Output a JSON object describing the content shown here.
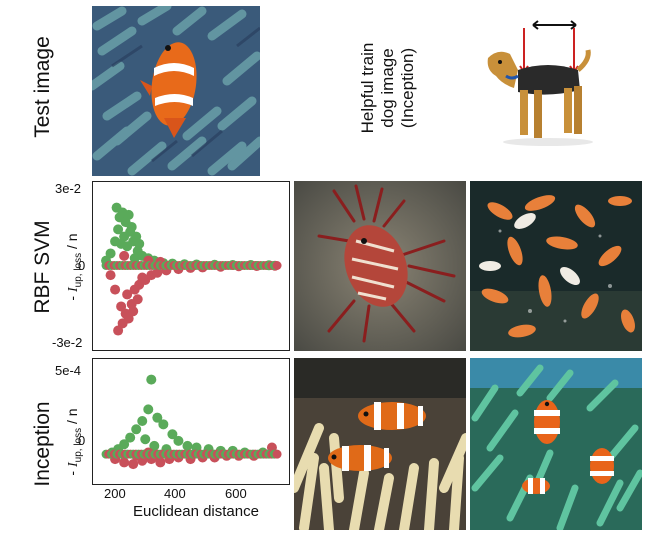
{
  "labels": {
    "test_image": "Test image",
    "helpful_line1": "Helpful train",
    "helpful_line2": "dog image",
    "helpful_line3": "(Inception)",
    "row_rbf": "RBF SVM",
    "row_inception": "Inception",
    "ylabel_prefix": "- ",
    "ylabel_symbol": "I",
    "ylabel_sub": "up, loss",
    "ylabel_suffix": " / n",
    "xlabel": "Euclidean distance"
  },
  "images": {
    "test_image": "clownfish-in-anemone",
    "helpful_dog": "airedale-terrier",
    "rbf_1": "lionfish",
    "rbf_2": "koi-goldfish-school",
    "inc_1": "clownfish-pair-in-anemone",
    "inc_2": "clownfish-group-in-anemone"
  },
  "colors": {
    "green": "#5aaa5a",
    "red": "#c8505a",
    "arrow": "#cc2222"
  },
  "chart_data": [
    {
      "type": "scatter",
      "row": "RBF SVM",
      "xlim": [
        130,
        750
      ],
      "ylim": [
        -0.033,
        0.033
      ],
      "yticks": [
        "3e-2",
        "0",
        "-3e-2"
      ],
      "ytick_values": [
        0.03,
        0,
        -0.03
      ],
      "series": [
        {
          "color": "green",
          "points": [
            [
              195,
              0.024
            ],
            [
              205,
              0.02
            ],
            [
              215,
              0.022
            ],
            [
              225,
              0.018
            ],
            [
              235,
              0.021
            ],
            [
              200,
              0.015
            ],
            [
              220,
              0.012
            ],
            [
              240,
              0.014
            ],
            [
              210,
              0.009
            ],
            [
              230,
              0.008
            ],
            [
              250,
              0.01
            ],
            [
              265,
              0.006
            ],
            [
              280,
              0.004
            ],
            [
              300,
              0.003
            ],
            [
              320,
              0.002
            ],
            [
              350,
              0.001
            ],
            [
              380,
              0.0008
            ],
            [
              420,
              0.0005
            ],
            [
              460,
              0.0004
            ],
            [
              520,
              0.0003
            ],
            [
              580,
              0.0002
            ],
            [
              640,
              0.0002
            ],
            [
              700,
              0.0001
            ],
            [
              260,
              0.012
            ],
            [
              245,
              0.016
            ],
            [
              190,
              0.01
            ],
            [
              175,
              0.005
            ],
            [
              160,
              0.002
            ],
            [
              270,
              0.009
            ],
            [
              255,
              0.003
            ]
          ]
        },
        {
          "color": "red",
          "points": [
            [
              200,
              -0.027
            ],
            [
              215,
              -0.024
            ],
            [
              225,
              -0.02
            ],
            [
              235,
              -0.022
            ],
            [
              210,
              -0.017
            ],
            [
              245,
              -0.016
            ],
            [
              230,
              -0.012
            ],
            [
              255,
              -0.01
            ],
            [
              270,
              -0.008
            ],
            [
              290,
              -0.006
            ],
            [
              310,
              -0.004
            ],
            [
              330,
              -0.003
            ],
            [
              360,
              -0.002
            ],
            [
              400,
              -0.0015
            ],
            [
              440,
              -0.001
            ],
            [
              480,
              -0.0008
            ],
            [
              540,
              -0.0005
            ],
            [
              600,
              -0.0003
            ],
            [
              660,
              -0.0002
            ],
            [
              720,
              -0.0001
            ],
            [
              190,
              -0.01
            ],
            [
              175,
              -0.004
            ],
            [
              265,
              -0.014
            ],
            [
              250,
              -0.019
            ],
            [
              280,
              -0.005
            ],
            [
              300,
              0.002
            ],
            [
              340,
              0.0015
            ],
            [
              220,
              0.004
            ]
          ]
        }
      ]
    },
    {
      "type": "scatter",
      "row": "Inception",
      "xlim": [
        130,
        750
      ],
      "ylim": [
        -0.00015,
        0.00055
      ],
      "yticks": [
        "5e-4",
        "0"
      ],
      "ytick_values": [
        0.0005,
        0
      ],
      "xticks": [
        "200",
        "400",
        "600"
      ],
      "xtick_values": [
        200,
        400,
        600
      ],
      "series": [
        {
          "color": "green",
          "points": [
            [
              310,
              0.00045
            ],
            [
              300,
              0.00027
            ],
            [
              280,
              0.0002
            ],
            [
              330,
              0.00022
            ],
            [
              260,
              0.00015
            ],
            [
              350,
              0.00018
            ],
            [
              240,
              0.0001
            ],
            [
              380,
              0.00012
            ],
            [
              220,
              6e-05
            ],
            [
              400,
              8e-05
            ],
            [
              430,
              5e-05
            ],
            [
              460,
              4e-05
            ],
            [
              500,
              3e-05
            ],
            [
              540,
              2e-05
            ],
            [
              580,
              2e-05
            ],
            [
              620,
              1e-05
            ],
            [
              680,
              1e-05
            ],
            [
              200,
              3e-05
            ],
            [
              180,
              1e-05
            ],
            [
              290,
              9e-05
            ],
            [
              320,
              5e-05
            ],
            [
              360,
              3e-05
            ]
          ]
        },
        {
          "color": "red",
          "points": [
            [
              190,
              -3e-05
            ],
            [
              220,
              -5e-05
            ],
            [
              250,
              -6e-05
            ],
            [
              280,
              -4e-05
            ],
            [
              310,
              -3e-05
            ],
            [
              340,
              -5e-05
            ],
            [
              370,
              -3e-05
            ],
            [
              400,
              -2e-05
            ],
            [
              440,
              -3e-05
            ],
            [
              480,
              -2e-05
            ],
            [
              520,
              -2e-05
            ],
            [
              560,
              -1e-05
            ],
            [
              600,
              -1e-05
            ],
            [
              650,
              -1e-05
            ],
            [
              710,
              4e-05
            ],
            [
              260,
              -1e-05
            ],
            [
              300,
              1e-05
            ],
            [
              330,
              -1e-05
            ]
          ]
        }
      ]
    }
  ]
}
